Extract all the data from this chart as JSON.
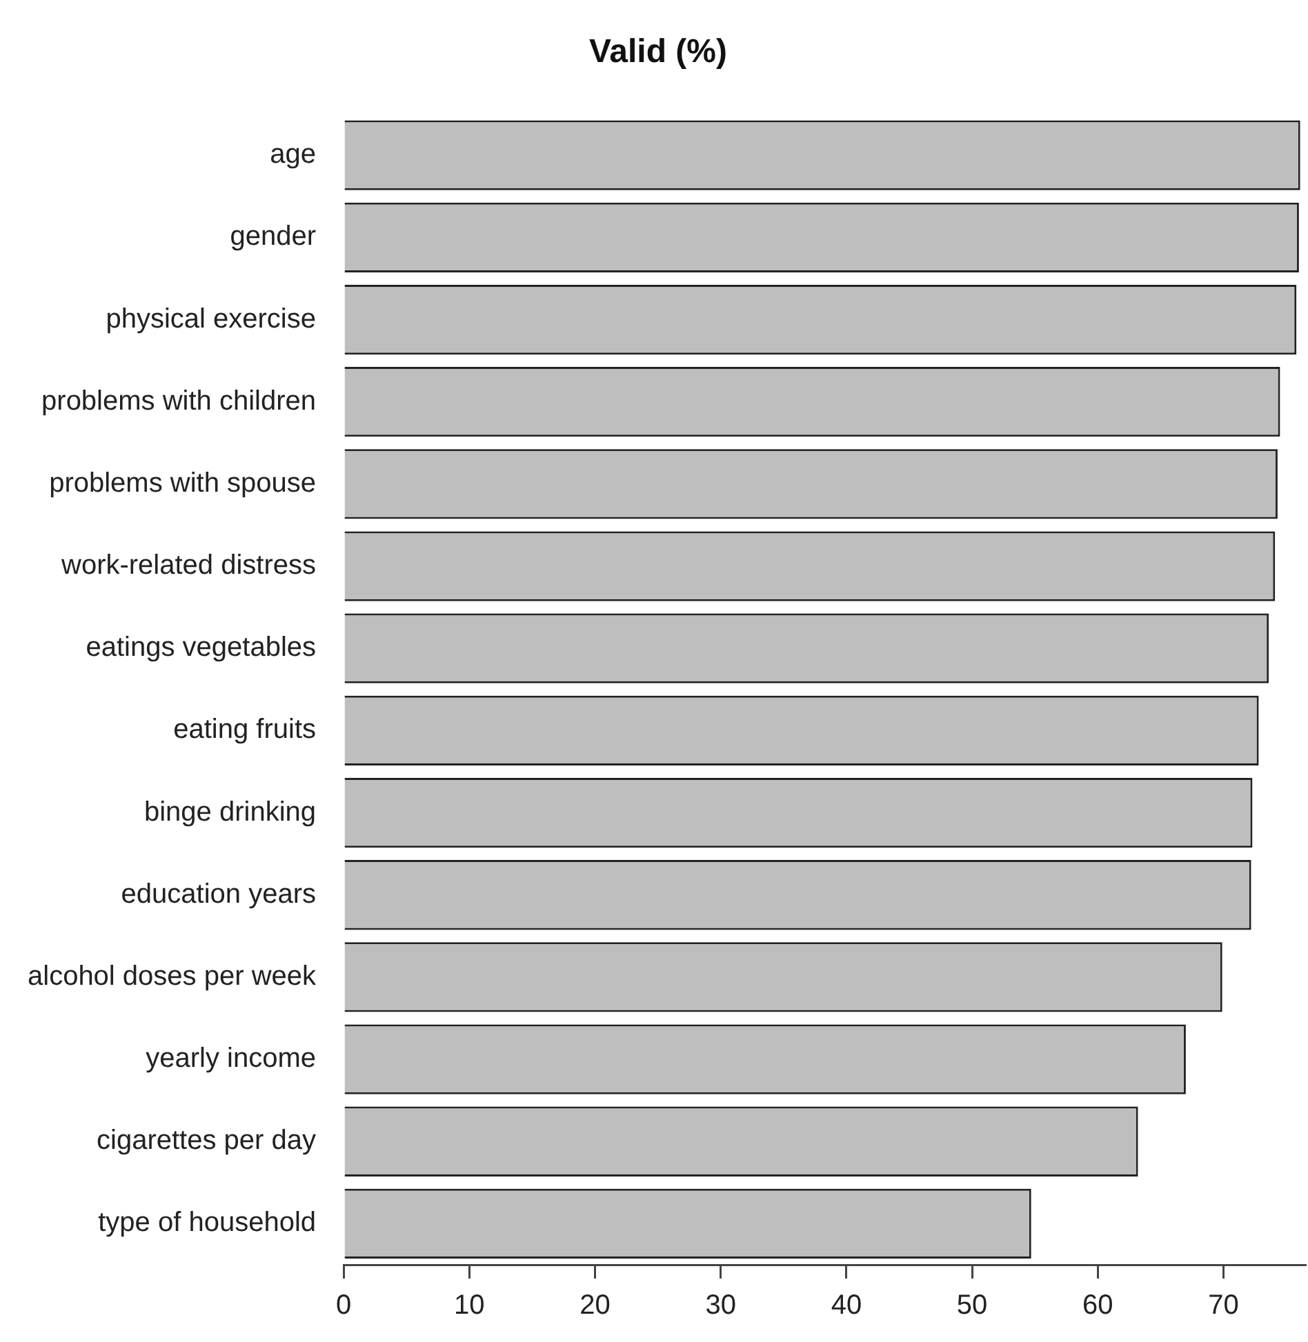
{
  "chart_data": {
    "type": "bar",
    "orientation": "horizontal",
    "title": "Valid (%)",
    "categories": [
      "age",
      "gender",
      "physical exercise",
      "problems with children",
      "problems with spouse",
      "work-related distress",
      "eatings vegetables",
      "eating fruits",
      "binge drinking",
      "education years",
      "alcohol doses per week",
      "yearly income",
      "cigarettes per day",
      "type of household"
    ],
    "values": [
      76.1,
      76.0,
      75.8,
      74.5,
      74.3,
      74.1,
      73.6,
      72.8,
      72.3,
      72.2,
      69.9,
      67.0,
      63.2,
      54.7
    ],
    "color": "#bebebe",
    "xlim": [
      0,
      76.5
    ],
    "xticks": [
      0,
      10,
      20,
      30,
      40,
      50,
      60,
      70
    ],
    "grid": false,
    "legend": false
  }
}
